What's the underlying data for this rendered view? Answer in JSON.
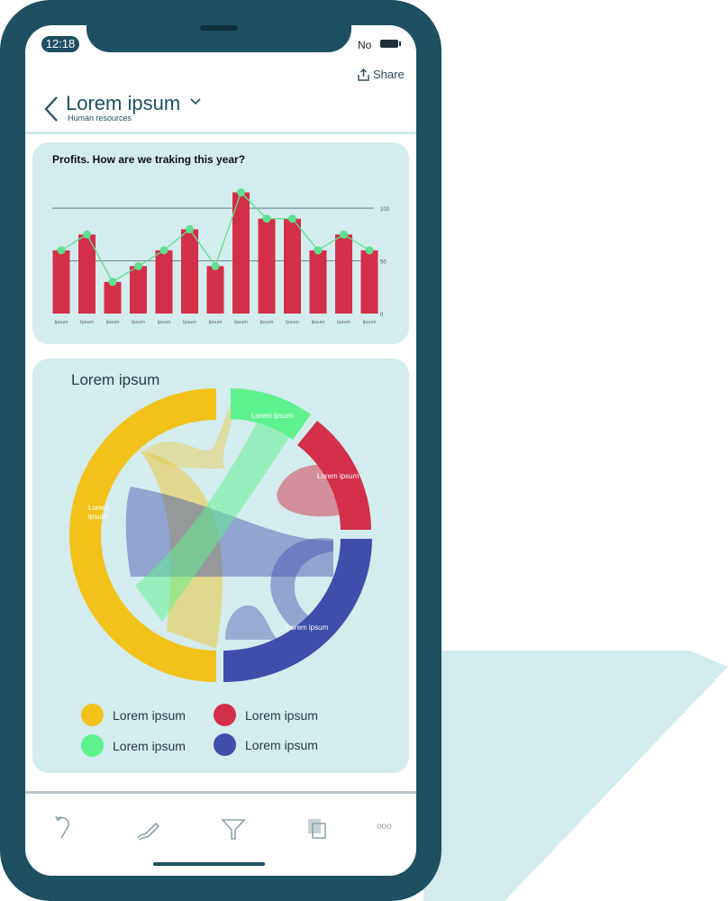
{
  "status_bar": {
    "time": "12:18",
    "carrier": "No"
  },
  "header": {
    "share_label": "Share",
    "title": "Lorem ipsum",
    "subtitle": "Human resources"
  },
  "profits_card": {
    "title": "Profits. How are we traking this year?"
  },
  "chart_data": [
    {
      "type": "bar",
      "title": "Profits. How are we traking this year?",
      "categories": [
        "Ipsum",
        "Ipsum",
        "Ipsum",
        "Ipsum",
        "Ipsum",
        "Ipsum",
        "Ipsum",
        "Ipsum",
        "Ipsum",
        "Ipsum",
        "Ipsum",
        "Ipsum",
        "Ipsum"
      ],
      "values": [
        60,
        75,
        30,
        45,
        60,
        80,
        45,
        115,
        90,
        90,
        60,
        75,
        60
      ],
      "line_values": [
        60,
        75,
        30,
        45,
        60,
        80,
        45,
        115,
        90,
        90,
        60,
        75,
        60
      ],
      "yticks": [
        0,
        50,
        100
      ],
      "ylim": [
        0,
        118
      ],
      "grid": true,
      "colors": {
        "bar": "#d42f48",
        "line": "#5ee08e",
        "grid": "#556a74"
      }
    },
    {
      "type": "chord",
      "title": "Lorem ipsum",
      "segments": [
        {
          "name": "Lorem ipsum",
          "color": "#f2c21b",
          "label": "Lorem ipsum"
        },
        {
          "name": "Lorem ipsum",
          "color": "#5ef28e",
          "label": "Lorem ipsum"
        },
        {
          "name": "Lorem ipsum",
          "color": "#d42f48",
          "label": "Lorem ipsum"
        },
        {
          "name": "Lorem ipsum",
          "color": "#3d4fab",
          "label": "Lorem ipsum"
        }
      ],
      "legend_placement": "bottom"
    }
  ],
  "legend": [
    {
      "label": "Lorem ipsum",
      "color": "#f2c21b"
    },
    {
      "label": "Lorem ipsum",
      "color": "#d42f48"
    },
    {
      "label": "Lorem ipsum",
      "color": "#5ef28e"
    },
    {
      "label": "Lorem ipsum",
      "color": "#3d4fab"
    }
  ],
  "toolbar": {
    "icons": [
      "undo-icon",
      "pen-icon",
      "filter-icon",
      "copy-icon",
      "more-icon"
    ],
    "more_label": "ooo"
  }
}
